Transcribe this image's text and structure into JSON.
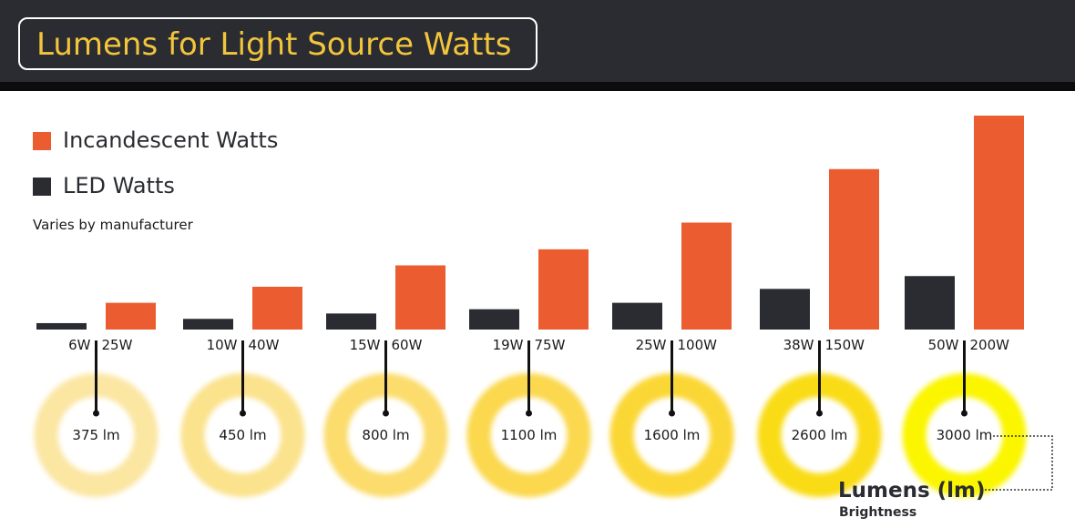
{
  "title": "Lumens for Light Source Watts",
  "legend": {
    "incandescent_label": "Incandescent Watts",
    "led_label": "LED Watts"
  },
  "note": "Varies by manufacturer",
  "lumens_axis": {
    "title": "Lumens (lm)",
    "subtitle": "Brightness"
  },
  "colors": {
    "header": "#2a2c31",
    "title_text": "#f2c53c",
    "incandescent": "#eb5d30",
    "led": "#2a2c31"
  },
  "chart_data": {
    "type": "bar",
    "title": "Lumens for Light Source Watts",
    "categories": [
      "375 lm",
      "450 lm",
      "800 lm",
      "1100 lm",
      "1600 lm",
      "2600 lm",
      "3000 lm"
    ],
    "lumens": [
      375,
      450,
      800,
      1100,
      1600,
      2600,
      3000
    ],
    "series": [
      {
        "name": "LED Watts",
        "values": [
          6,
          10,
          15,
          19,
          25,
          38,
          50
        ],
        "labels": [
          "6W",
          "10W",
          "15W",
          "19W",
          "25W",
          "38W",
          "50W"
        ],
        "color": "#2a2c31"
      },
      {
        "name": "Incandescent Watts",
        "values": [
          25,
          40,
          60,
          75,
          100,
          150,
          200
        ],
        "labels": [
          "25W",
          "40W",
          "60W",
          "75W",
          "100W",
          "150W",
          "200W"
        ],
        "color": "#eb5d30"
      }
    ],
    "ylim": [
      0,
      200
    ],
    "grid": false,
    "legend_position": "top-left"
  }
}
